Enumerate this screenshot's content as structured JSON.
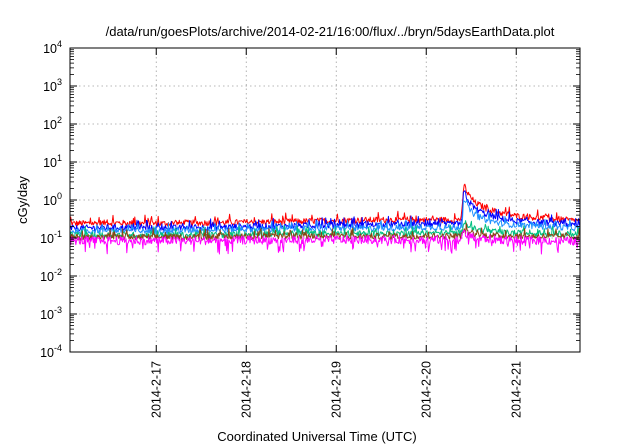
{
  "chart_data": {
    "type": "line",
    "title": "/data/run/goesPlots/archive/2014-02-21/16:00/flux/../bryn/5daysEarthData.plot",
    "xlabel": "Coordinated Universal Time (UTC)",
    "ylabel": "cGy/day",
    "y_scale": "log",
    "ylim": [
      0.0001,
      10000
    ],
    "xlim": [
      "2014-02-16 01:00",
      "2014-02-21 17:00"
    ],
    "grid": true,
    "legend": "none",
    "y_ticks": [
      {
        "base": "10",
        "exp": "-4"
      },
      {
        "base": "10",
        "exp": "-3"
      },
      {
        "base": "10",
        "exp": "-2"
      },
      {
        "base": "10",
        "exp": "-1"
      },
      {
        "base": "10",
        "exp": "0"
      },
      {
        "base": "10",
        "exp": "1"
      },
      {
        "base": "10",
        "exp": "2"
      },
      {
        "base": "10",
        "exp": "3"
      },
      {
        "base": "10",
        "exp": "4"
      }
    ],
    "x_ticks": [
      "2014-2-17",
      "2014-2-18",
      "2014-2-19",
      "2014-2-20",
      "2014-2-21"
    ],
    "x_tick_dates": [
      "2014-02-17",
      "2014-02-18",
      "2014-02-19",
      "2014-02-20",
      "2014-02-21"
    ],
    "series": [
      {
        "color": "#ff0000",
        "x": [
          "2014-02-16 01:00",
          "2014-02-16 12:00",
          "2014-02-17 00:00",
          "2014-02-17 12:00",
          "2014-02-18 00:00",
          "2014-02-18 12:00",
          "2014-02-19 00:00",
          "2014-02-19 12:00",
          "2014-02-20 00:00",
          "2014-02-20 08:00",
          "2014-02-20 09:30",
          "2014-02-20 10:00",
          "2014-02-20 11:00",
          "2014-02-20 13:00",
          "2014-02-20 16:00",
          "2014-02-20 20:00",
          "2014-02-21 00:00",
          "2014-02-21 08:00",
          "2014-02-21 17:00"
        ],
        "y": [
          0.24,
          0.25,
          0.24,
          0.25,
          0.26,
          0.27,
          0.29,
          0.3,
          0.3,
          0.3,
          0.33,
          2.7,
          1.5,
          0.85,
          0.6,
          0.45,
          0.38,
          0.33,
          0.28
        ]
      },
      {
        "color": "#0000ff",
        "x": [
          "2014-02-16 01:00",
          "2014-02-16 12:00",
          "2014-02-17 00:00",
          "2014-02-17 12:00",
          "2014-02-18 00:00",
          "2014-02-18 12:00",
          "2014-02-19 00:00",
          "2014-02-19 12:00",
          "2014-02-20 00:00",
          "2014-02-20 08:00",
          "2014-02-20 09:30",
          "2014-02-20 10:00",
          "2014-02-20 11:00",
          "2014-02-20 13:00",
          "2014-02-20 16:00",
          "2014-02-20 20:00",
          "2014-02-21 00:00",
          "2014-02-21 08:00",
          "2014-02-21 17:00"
        ],
        "y": [
          0.18,
          0.19,
          0.18,
          0.19,
          0.2,
          0.21,
          0.22,
          0.22,
          0.23,
          0.23,
          0.25,
          1.9,
          1.0,
          0.6,
          0.42,
          0.32,
          0.28,
          0.25,
          0.21
        ]
      },
      {
        "color": "#1e90ff",
        "x": [
          "2014-02-16 01:00",
          "2014-02-16 12:00",
          "2014-02-17 00:00",
          "2014-02-17 12:00",
          "2014-02-18 00:00",
          "2014-02-18 12:00",
          "2014-02-19 00:00",
          "2014-02-19 12:00",
          "2014-02-20 00:00",
          "2014-02-20 08:00",
          "2014-02-20 09:30",
          "2014-02-20 10:00",
          "2014-02-20 11:00",
          "2014-02-20 13:00",
          "2014-02-20 16:00",
          "2014-02-20 20:00",
          "2014-02-21 00:00",
          "2014-02-21 08:00",
          "2014-02-21 17:00"
        ],
        "y": [
          0.15,
          0.16,
          0.15,
          0.16,
          0.17,
          0.17,
          0.18,
          0.18,
          0.19,
          0.19,
          0.2,
          1.2,
          0.65,
          0.4,
          0.3,
          0.24,
          0.22,
          0.2,
          0.18
        ]
      },
      {
        "color": "#00c080",
        "x": [
          "2014-02-16 01:00",
          "2014-02-16 12:00",
          "2014-02-17 00:00",
          "2014-02-17 12:00",
          "2014-02-18 00:00",
          "2014-02-18 12:00",
          "2014-02-19 00:00",
          "2014-02-19 12:00",
          "2014-02-20 00:00",
          "2014-02-20 08:00",
          "2014-02-20 09:30",
          "2014-02-20 10:00",
          "2014-02-20 11:00",
          "2014-02-20 13:00",
          "2014-02-20 16:00",
          "2014-02-20 20:00",
          "2014-02-21 00:00",
          "2014-02-21 08:00",
          "2014-02-21 17:00"
        ],
        "y": [
          0.12,
          0.12,
          0.12,
          0.12,
          0.125,
          0.13,
          0.13,
          0.13,
          0.135,
          0.135,
          0.14,
          0.3,
          0.22,
          0.17,
          0.15,
          0.14,
          0.135,
          0.13,
          0.125
        ]
      },
      {
        "color": "#8b4513",
        "x": [
          "2014-02-16 01:00",
          "2014-02-16 12:00",
          "2014-02-17 00:00",
          "2014-02-17 12:00",
          "2014-02-18 00:00",
          "2014-02-18 12:00",
          "2014-02-19 00:00",
          "2014-02-19 12:00",
          "2014-02-20 00:00",
          "2014-02-20 08:00",
          "2014-02-20 09:30",
          "2014-02-20 10:00",
          "2014-02-20 11:00",
          "2014-02-20 13:00",
          "2014-02-20 16:00",
          "2014-02-20 20:00",
          "2014-02-21 00:00",
          "2014-02-21 08:00",
          "2014-02-21 17:00"
        ],
        "y": [
          0.105,
          0.105,
          0.105,
          0.105,
          0.11,
          0.11,
          0.11,
          0.11,
          0.112,
          0.112,
          0.115,
          0.17,
          0.14,
          0.125,
          0.118,
          0.115,
          0.112,
          0.11,
          0.108
        ]
      },
      {
        "color": "#ff00ff",
        "x": [
          "2014-02-16 01:00",
          "2014-02-16 12:00",
          "2014-02-17 00:00",
          "2014-02-17 12:00",
          "2014-02-18 00:00",
          "2014-02-18 12:00",
          "2014-02-19 00:00",
          "2014-02-19 12:00",
          "2014-02-20 00:00",
          "2014-02-20 08:00",
          "2014-02-20 09:30",
          "2014-02-20 10:00",
          "2014-02-20 11:00",
          "2014-02-20 13:00",
          "2014-02-20 16:00",
          "2014-02-20 20:00",
          "2014-02-21 00:00",
          "2014-02-21 08:00",
          "2014-02-21 17:00"
        ],
        "y": [
          0.085,
          0.085,
          0.085,
          0.085,
          0.088,
          0.088,
          0.09,
          0.09,
          0.09,
          0.09,
          0.092,
          0.15,
          0.12,
          0.1,
          0.095,
          0.09,
          0.088,
          0.085,
          0.082
        ]
      }
    ]
  }
}
